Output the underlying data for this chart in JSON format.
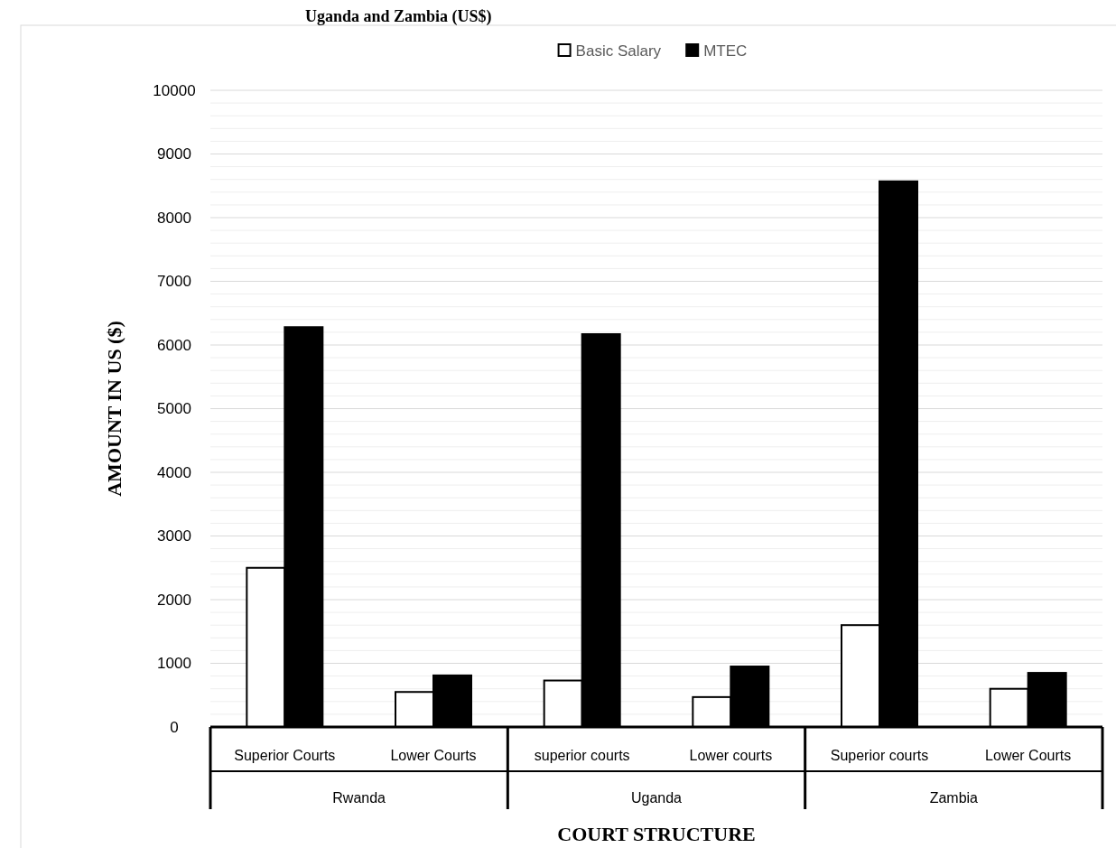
{
  "chart_data": {
    "type": "bar",
    "title": "Uganda and Zambia (US$)",
    "xlabel": "COURT STRUCTURE",
    "ylabel": "AMOUNT IN US ($)",
    "categories": [
      "Superior Courts",
      "Lower Courts",
      "superior courts",
      "Lower courts",
      "Superior courts",
      "Lower Courts"
    ],
    "annotations": [
      "Rwanda",
      "Uganda",
      "Zambia"
    ],
    "series": [
      {
        "name": "Basic Salary",
        "color": "#ffffff",
        "values": [
          2500,
          550,
          730,
          470,
          1600,
          600
        ]
      },
      {
        "name": "MTEC",
        "color": "#000000",
        "values": [
          6280,
          810,
          6170,
          950,
          8570,
          850
        ]
      }
    ],
    "ylim": [
      0,
      10000
    ],
    "yticks": [
      0,
      {
        "value": 200,
        "label": null
      },
      {
        "value": 400,
        "label": null
      },
      {
        "value": 600,
        "label": null
      },
      {
        "value": 800,
        "label": null
      },
      1000,
      {
        "value": 1200,
        "label": null
      },
      {
        "value": 1400,
        "label": null
      },
      {
        "value": 1600,
        "label": null
      },
      {
        "value": 1800,
        "label": null
      },
      2000,
      {
        "value": 2200,
        "label": null
      },
      {
        "value": 2400,
        "label": null
      },
      {
        "value": 2600,
        "label": null
      },
      {
        "value": 2800,
        "label": null
      },
      3000,
      {
        "value": 3200,
        "label": null
      },
      {
        "value": 3400,
        "label": null
      },
      {
        "value": 3600,
        "label": null
      },
      {
        "value": 3800,
        "label": null
      },
      4000,
      {
        "value": 4200,
        "label": null
      },
      {
        "value": 4400,
        "label": null
      },
      {
        "value": 4600,
        "label": null
      },
      {
        "value": 4800,
        "label": null
      },
      5000,
      {
        "value": 5200,
        "label": null
      },
      {
        "value": 5400,
        "label": null
      },
      {
        "value": 5600,
        "label": null
      },
      {
        "value": 5800,
        "label": null
      },
      6000,
      {
        "value": 6200,
        "label": null
      },
      {
        "value": 6400,
        "label": null
      },
      {
        "value": 6600,
        "label": null
      },
      {
        "value": 6800,
        "label": null
      },
      7000,
      {
        "value": 7200,
        "label": null
      },
      {
        "value": 7400,
        "label": null
      },
      {
        "value": 7600,
        "label": null
      },
      {
        "value": 7800,
        "label": null
      },
      8000,
      {
        "value": 8200,
        "label": null
      },
      {
        "value": 8400,
        "label": null
      },
      {
        "value": 8600,
        "label": null
      },
      {
        "value": 8800,
        "label": null
      },
      9000,
      {
        "value": 9200,
        "label": null
      },
      {
        "value": 9400,
        "label": null
      },
      {
        "value": 9600,
        "label": null
      },
      {
        "value": 9800,
        "label": null
      },
      10000
    ],
    "grid": "y",
    "legend": "top"
  }
}
